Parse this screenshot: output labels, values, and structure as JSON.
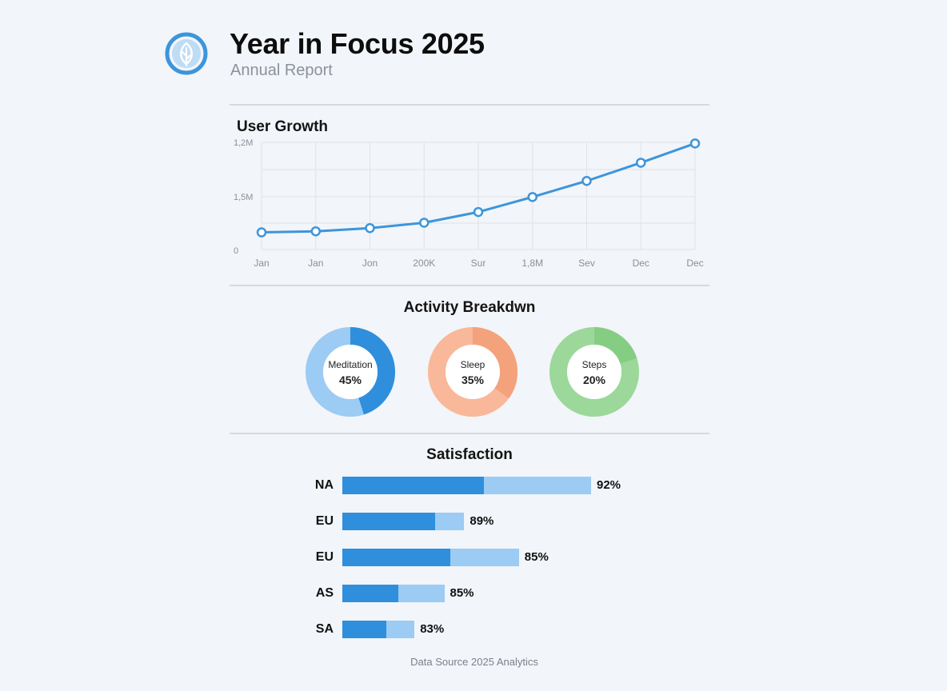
{
  "header": {
    "title": "Year in Focus 2025",
    "subtitle": "Annual Report",
    "logo_icon": "leaf-icon"
  },
  "colors": {
    "accent": "#3d95db",
    "bar_dark": "#2f8fdc",
    "bar_light": "#9ccbf3",
    "meditation": [
      "#2f8fdc",
      "#9ccbf3"
    ],
    "sleep": [
      "#f3a27c",
      "#f9b899"
    ],
    "steps": [
      "#86cd84",
      "#9bd89a"
    ]
  },
  "chart_data": [
    {
      "type": "line",
      "title": "User Growth",
      "categories": [
        "Jan",
        "Jan",
        "Jon",
        "200K",
        "Sur",
        "1,8M",
        "Sev",
        "Dec",
        "Dec"
      ],
      "y_tick_labels": [
        "1,2M",
        "1,5M",
        "0"
      ],
      "values": [
        0.16,
        0.17,
        0.2,
        0.25,
        0.35,
        0.49,
        0.64,
        0.81,
        0.99
      ],
      "value_note": "y axis labels are inconsistent; values expressed as fraction of axis height",
      "grid": true,
      "color": "#3d95db"
    },
    {
      "type": "pie",
      "title": "Activity Breakdwn",
      "categories": [
        "Meditation",
        "Sleep",
        "Steps"
      ],
      "values": [
        45,
        35,
        20
      ],
      "labels": [
        "45%",
        "35%",
        "20%"
      ]
    },
    {
      "type": "bar",
      "title": "Satisfaction",
      "categories": [
        "NA",
        "EU",
        "EU",
        "AS",
        "SA"
      ],
      "values": [
        92,
        89,
        85,
        85,
        83
      ],
      "labels": [
        "92%",
        "89%",
        "85%",
        "85%",
        "83%"
      ],
      "bar_fraction": [
        1.0,
        0.49,
        0.71,
        0.41,
        0.29
      ],
      "dark_fraction": [
        0.57,
        0.76,
        0.61,
        0.55,
        0.61
      ]
    }
  ],
  "footer": {
    "text": "Data Source 2025 Analytics"
  }
}
